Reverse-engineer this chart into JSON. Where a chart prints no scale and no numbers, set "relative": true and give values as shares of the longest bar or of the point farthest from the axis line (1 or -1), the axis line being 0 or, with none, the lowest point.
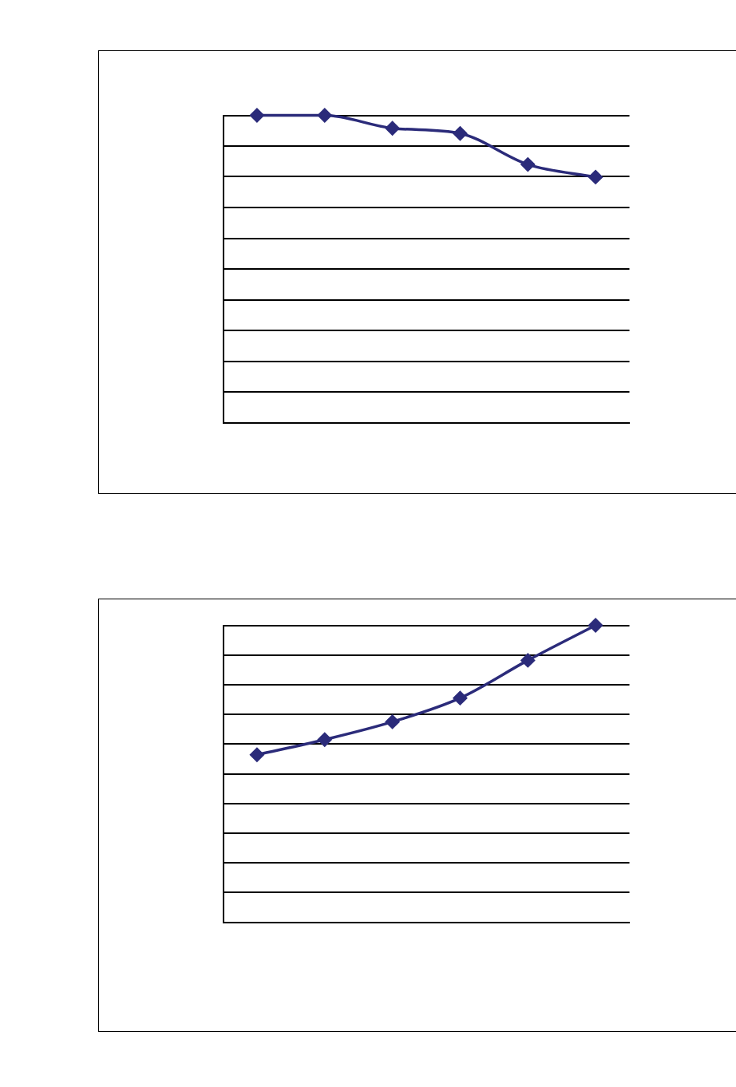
{
  "chart_data": [
    {
      "type": "line",
      "relative": true,
      "categories": [
        null,
        null,
        null,
        null,
        null,
        null
      ],
      "grid": "y",
      "marker": "diamond",
      "line_style": "solid",
      "legend": false,
      "series": [
        {
          "color": "#2b2b7a",
          "values": [
            1,
            1,
            0.958,
            0.941,
            0.84,
            0.799
          ]
        }
      ]
    },
    {
      "type": "line",
      "relative": true,
      "categories": [
        null,
        null,
        null,
        null,
        null,
        null
      ],
      "grid": "y",
      "marker": "diamond",
      "line_style": "solid",
      "legend": false,
      "series": [
        {
          "color": "#2b2b7a",
          "values": [
            0.564,
            0.615,
            0.675,
            0.755,
            0.882,
            1
          ]
        }
      ]
    }
  ]
}
